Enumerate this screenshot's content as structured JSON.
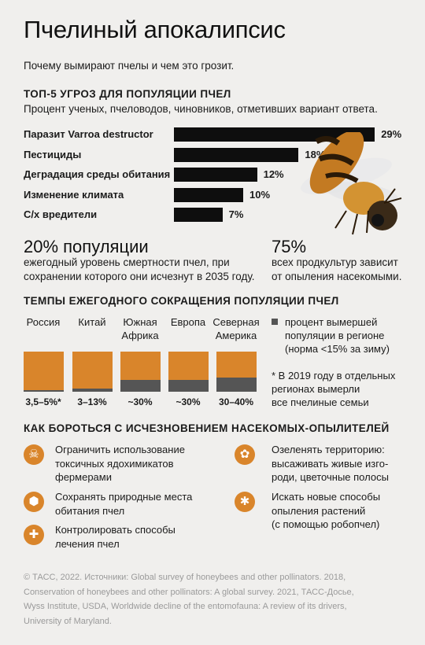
{
  "header": {
    "title": "Пчелиный апокалипсис",
    "subtitle": "Почему вымирают пчелы и чем это грозит."
  },
  "threats": {
    "title": "ТОП-5 УГРОЗ ДЛЯ ПОПУЛЯЦИИ ПЧЕЛ",
    "subtitle": "Процент ученых, пчеловодов, чиновников, отметивших вариант ответа."
  },
  "stats": {
    "left_big": "20% популяции",
    "left_text_1": "ежегодный уровень смертности пчел, при",
    "left_text_2": "сохранении которого они исчезнут в 2035 году.",
    "right_big": "75%",
    "right_text_1": "всех продкультур зависит",
    "right_text_2": "от опыления насекомыми."
  },
  "decline": {
    "title": "ТЕМПЫ ЕЖЕГОДНОГО СОКРАЩЕНИЯ ПОПУЛЯЦИИ ПЧЕЛ",
    "legend_1": "процент вымершей",
    "legend_2": "популяции в регионе",
    "legend_3": "(норма <15% за зиму)",
    "note_1": "* В 2019 году в отдельных",
    "note_2": "регионах вымерли",
    "note_3": "все пчелиные семьи"
  },
  "measures": {
    "title": "КАК БОРОТЬСЯ С ИСЧЕЗНОВЕНИЕМ НАСЕКОМЫХ-ОПЫЛИТЕЛЕЙ",
    "items": [
      {
        "icon": "skull-icon",
        "lines": [
          "Ограничить использование",
          "токсичных ядохимикатов",
          "фермерами"
        ]
      },
      {
        "icon": "flower-icon",
        "lines": [
          "Озеленять территорию:",
          "высаживать живые изго-",
          "роди, цветочные полосы"
        ]
      },
      {
        "icon": "hive-icon",
        "lines": [
          "Сохранять природные места",
          "обитания пчел"
        ]
      },
      {
        "icon": "bee-icon",
        "lines": [
          "Искать новые способы",
          "опыления растений",
          "(с помощью робопчел)"
        ]
      },
      {
        "icon": "medical-cross-icon",
        "lines": [
          "Контролировать способы",
          "лечения пчел"
        ]
      }
    ]
  },
  "footer": {
    "line_1": "© ТАСС, 2022. Источники: Global survey of honeybees and other pollinators. 2018,",
    "line_2": "Conservation of honeybees and other pollinators: A global survey. 2021, ТАСС-Досье,",
    "line_3": "Wyss Institute, USDA, Worldwide decline of the entomofauna: A review of its drivers,",
    "line_4": "University of Maryland."
  },
  "colors": {
    "accent": "#d9852b",
    "bar": "#0e0e0e",
    "dead": "#555555",
    "background": "#f0efed"
  },
  "chart_data": [
    {
      "type": "bar",
      "orientation": "horizontal",
      "categories": [
        "Паразит Varroa destructor",
        "Пестициды",
        "Деградация среды обитания",
        "Изменение климата",
        "С/х вредители"
      ],
      "values": [
        29,
        18,
        12,
        10,
        7
      ],
      "value_labels": [
        "29%",
        "18%",
        "12%",
        "10%",
        "7%"
      ],
      "title": "ТОП-5 УГРОЗ ДЛЯ ПОПУЛЯЦИИ ПЧЕЛ"
    },
    {
      "type": "bar",
      "categories": [
        "Россия",
        "Китай",
        "Южная Африка",
        "Европа",
        "Северная Америка"
      ],
      "category_lines": [
        [
          "Россия"
        ],
        [
          "Китай"
        ],
        [
          "Южная",
          "Африка"
        ],
        [
          "Европа"
        ],
        [
          "Северная",
          "Америка"
        ]
      ],
      "value_labels": [
        "3,5–5%*",
        "3–13%",
        "~30%",
        "~30%",
        "30–40%"
      ],
      "range_low": [
        3.5,
        3,
        30,
        30,
        30
      ],
      "range_high": [
        5,
        13,
        30,
        30,
        40
      ],
      "legend": "процент вымершей популяции в регионе (норма <15% за зиму)",
      "title": "ТЕМПЫ ЕЖЕГОДНОГО СОКРАЩЕНИЯ ПОПУЛЯЦИИ ПЧЕЛ"
    }
  ]
}
